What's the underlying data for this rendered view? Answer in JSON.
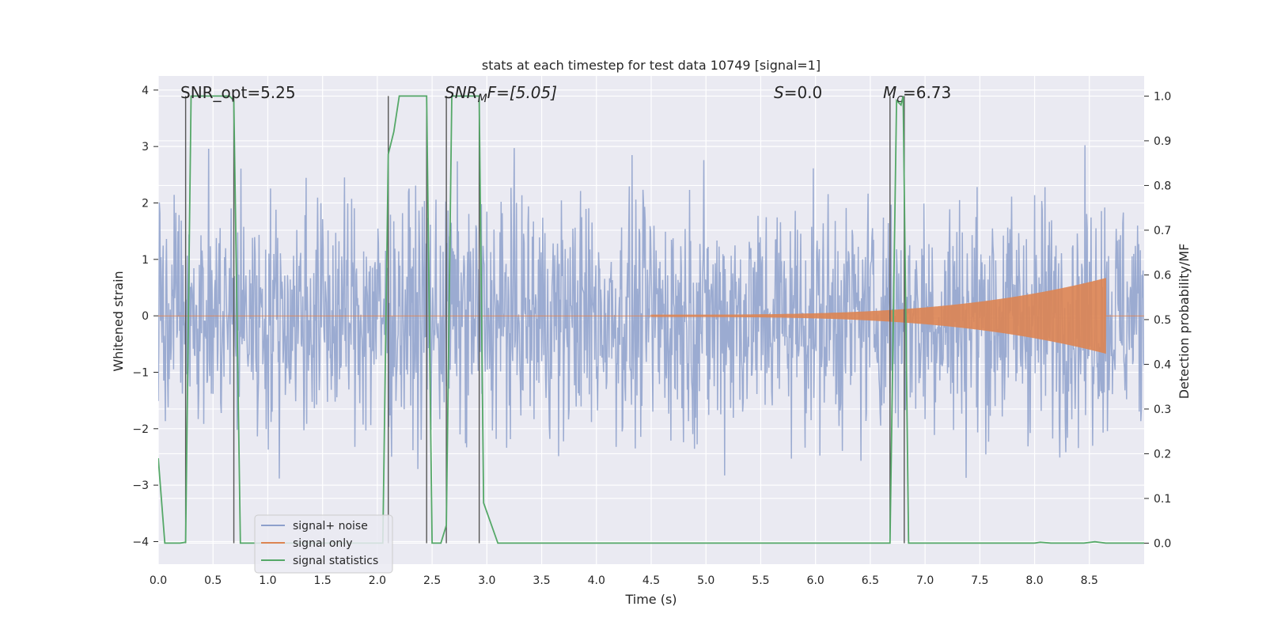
{
  "chart_data": {
    "type": "line",
    "title": "stats at each timestep for test data 10749 [signal=1]",
    "xlabel": "Time (s)",
    "ylabel_left": "Whitened strain",
    "ylabel_right": "Detection probability/MF",
    "xlim": [
      0.0,
      9.0
    ],
    "ylim_left": [
      -4.4,
      4.25
    ],
    "ylim_right": [
      -0.047,
      1.045
    ],
    "x_ticks": [
      0.0,
      0.5,
      1.0,
      1.5,
      2.0,
      2.5,
      3.0,
      3.5,
      4.0,
      4.5,
      5.0,
      5.5,
      6.0,
      6.5,
      7.0,
      7.5,
      8.0,
      8.5
    ],
    "x_tick_labels": [
      "0.0",
      "0.5",
      "1.0",
      "1.5",
      "2.0",
      "2.5",
      "3.0",
      "3.5",
      "4.0",
      "4.5",
      "5.0",
      "5.5",
      "6.0",
      "6.5",
      "7.0",
      "7.5",
      "8.0",
      "8.5"
    ],
    "y_left_ticks": [
      -4,
      -3,
      -2,
      -1,
      0,
      1,
      2,
      3,
      4
    ],
    "y_left_tick_labels": [
      "−4",
      "−3",
      "−2",
      "−1",
      "0",
      "1",
      "2",
      "3",
      "4"
    ],
    "y_right_ticks": [
      0.0,
      0.1,
      0.2,
      0.3,
      0.4,
      0.5,
      0.6,
      0.7,
      0.8,
      0.9,
      1.0
    ],
    "y_right_tick_labels": [
      "0.0",
      "0.1",
      "0.2",
      "0.3",
      "0.4",
      "0.5",
      "0.6",
      "0.7",
      "0.8",
      "0.9",
      "1.0"
    ],
    "annotations": {
      "snr_opt": "SNR_opt=5.25",
      "snr_mf_main": "SNR",
      "snr_mf_sub": "M",
      "snr_mf_rest": "F=[5.05]",
      "s_var": "S",
      "s_rest": "=0.0",
      "mc_var": "M",
      "mc_sub": "c",
      "mc_rest": "=6.73"
    },
    "legend": [
      "signal+ noise",
      "signal only",
      "signal statistics"
    ],
    "colors": {
      "noise": "#8da0cb",
      "signal": "#dd8452",
      "stats": "#55a868",
      "vlines": "#555555",
      "plot_bg": "#eaeaf2",
      "grid": "#ffffff"
    },
    "noise_series": {
      "duration_s": 9.0,
      "n_samples": 1800,
      "envelope_left": [
        -2.3,
        2.3
      ],
      "max_abs": 3.9
    },
    "signal_chirp": {
      "start_s": 4.5,
      "end_s": 8.65,
      "peak_amplitude": 0.65
    },
    "stats_series": {
      "x": [
        0.0,
        0.06,
        0.2,
        0.25,
        0.3,
        0.65,
        0.69,
        0.75,
        1.9,
        2.05,
        2.1,
        2.15,
        2.2,
        2.45,
        2.5,
        2.58,
        2.63,
        2.68,
        2.93,
        2.97,
        3.1,
        6.68,
        6.74,
        6.78,
        6.8,
        6.85,
        6.92,
        8.0,
        8.05,
        8.15,
        8.45,
        8.55,
        8.65,
        9.0
      ],
      "y": [
        0.19,
        0.0,
        0.0,
        0.002,
        1.0,
        1.0,
        0.99,
        0.0,
        0.0,
        0.0,
        0.87,
        0.92,
        1.0,
        1.0,
        0.0,
        0.0,
        0.04,
        1.0,
        1.0,
        0.09,
        0.0,
        0.0,
        0.99,
        0.98,
        1.0,
        0.0,
        0.0,
        0.0,
        0.002,
        0.0,
        0.0,
        0.003,
        0.0,
        0.0
      ]
    },
    "vlines_x": [
      0.25,
      0.69,
      2.1,
      2.45,
      2.63,
      2.93,
      6.68,
      6.81
    ]
  }
}
